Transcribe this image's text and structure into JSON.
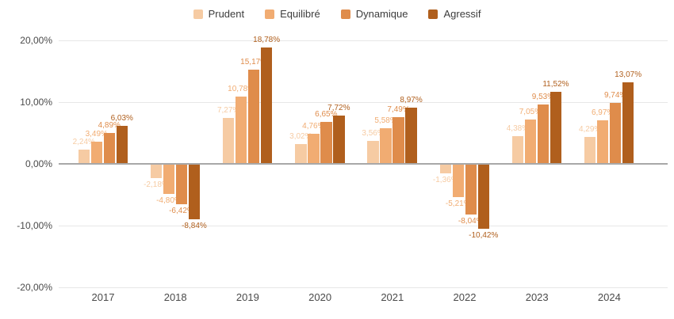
{
  "chart_data": {
    "type": "bar",
    "title": "",
    "xlabel": "",
    "ylabel": "",
    "grid": true,
    "legend_position": "top",
    "categories": [
      "2017",
      "2018",
      "2019",
      "2020",
      "2021",
      "2022",
      "2023",
      "2024"
    ],
    "series": [
      {
        "name": "Prudent",
        "color": "#F6CBA3",
        "values": [
          2.24,
          -2.18,
          7.27,
          3.02,
          3.56,
          -1.36,
          4.38,
          4.29
        ],
        "labels": [
          "2,24%",
          "-2,18%",
          "7,27%",
          "3,02%",
          "3,56%",
          "-1,36%",
          "4,38%",
          "4,29%"
        ]
      },
      {
        "name": "Equilibré",
        "color": "#F1AC72",
        "values": [
          3.49,
          -4.8,
          10.78,
          4.76,
          5.58,
          -5.21,
          7.05,
          6.97
        ],
        "labels": [
          "3,49%",
          "-4,80%",
          "10,78%",
          "4,76%",
          "5,58%",
          "-5,21%",
          "7,05%",
          "6,97%"
        ]
      },
      {
        "name": "Dynamique",
        "color": "#DF8C4B",
        "values": [
          4.89,
          -6.42,
          15.17,
          6.65,
          7.49,
          -8.04,
          9.53,
          9.74
        ],
        "labels": [
          "4,89%",
          "-6,42%",
          "15,17%",
          "6,65%",
          "7,49%",
          "-8,04%",
          "9,53%",
          "9,74%"
        ]
      },
      {
        "name": "Agressif",
        "color": "#B05F1D",
        "values": [
          6.03,
          -8.84,
          18.78,
          7.72,
          8.97,
          -10.42,
          11.52,
          13.07
        ],
        "labels": [
          "6,03%",
          "-8,84%",
          "18,78%",
          "7,72%",
          "8,97%",
          "-10,42%",
          "11,52%",
          "13,07%"
        ]
      }
    ],
    "y_axis": {
      "range": [
        -20,
        20
      ],
      "ticks": [
        {
          "value": 20,
          "label": "20,00%"
        },
        {
          "value": 10,
          "label": "10,00%"
        },
        {
          "value": 0,
          "label": "0,00%"
        },
        {
          "value": -10,
          "label": "-10,00%"
        },
        {
          "value": -20,
          "label": "-20,00%"
        }
      ]
    }
  },
  "colors": {
    "background": "#ffffff",
    "grid": "#e7e7e7",
    "zero_line": "#a8a8a8",
    "axis_text": "#4a4a4a",
    "legend_text": "#3c3c3c"
  }
}
